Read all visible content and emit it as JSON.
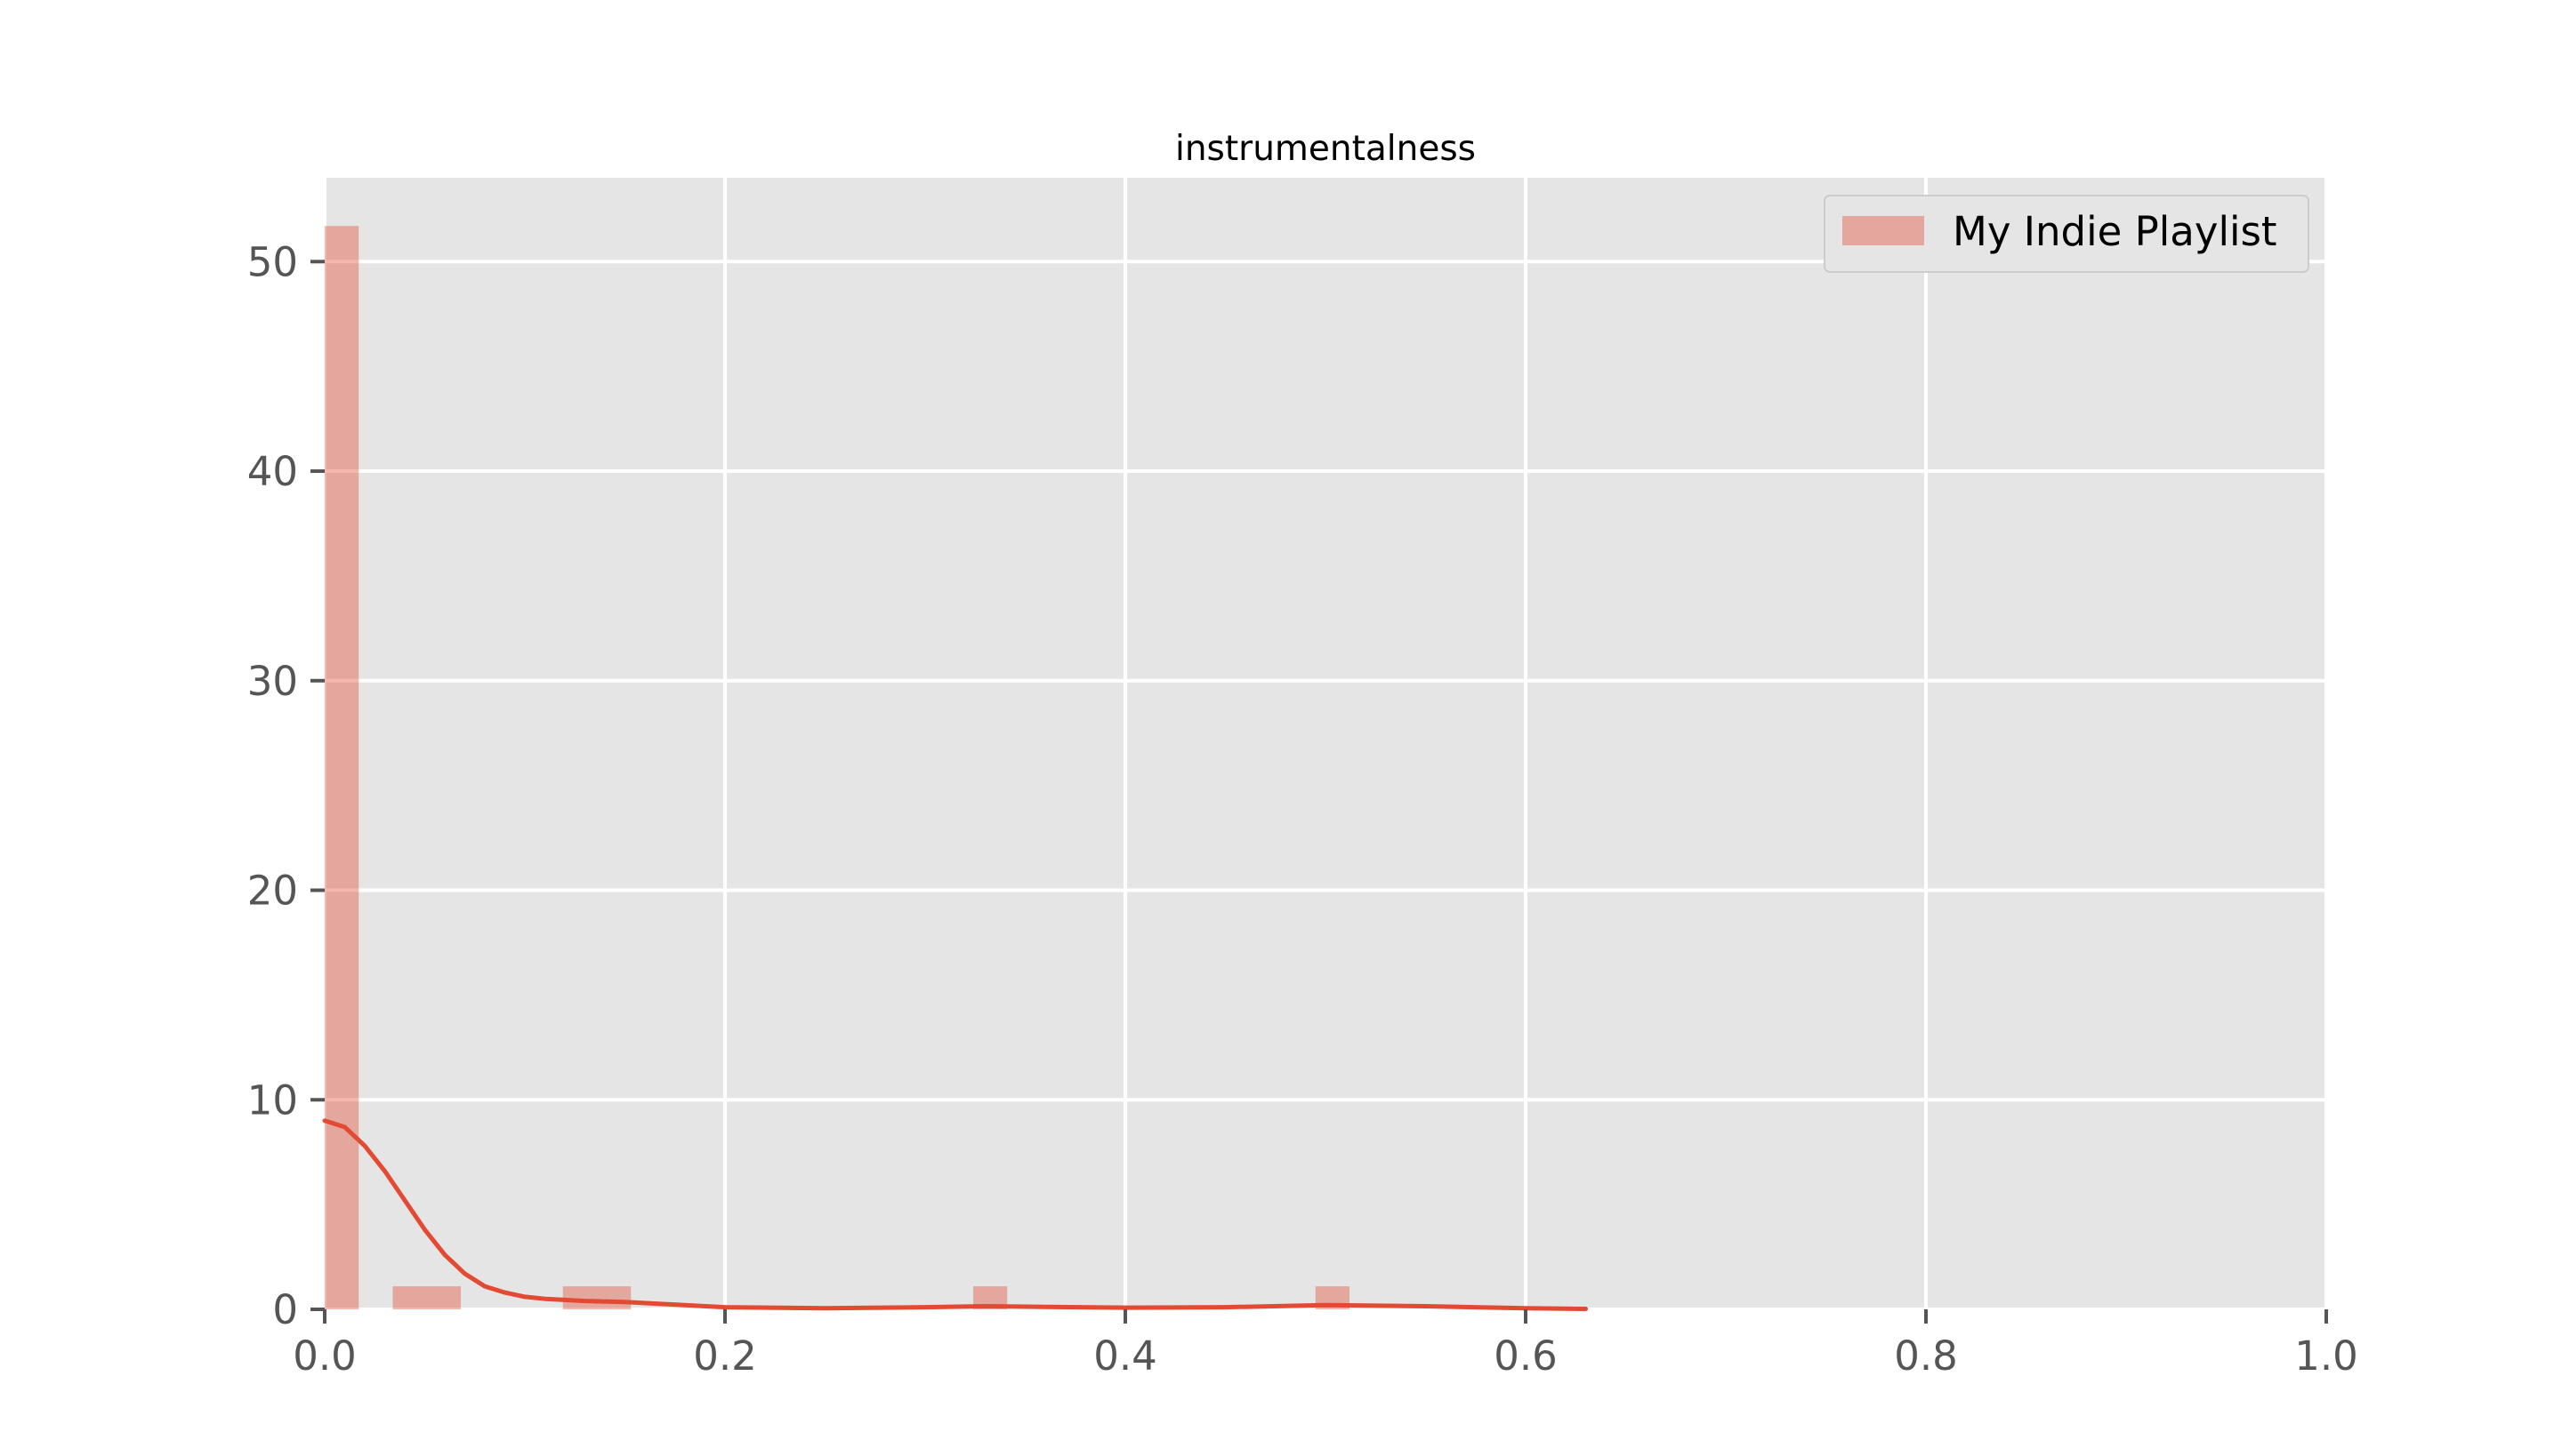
{
  "chart_data": {
    "type": "bar",
    "title": "instrumentalness",
    "xlabel": "",
    "ylabel": "",
    "xlim": [
      0.0,
      1.0
    ],
    "ylim": [
      0,
      54
    ],
    "xticks": [
      0.0,
      0.2,
      0.4,
      0.6,
      0.8,
      1.0
    ],
    "xtick_labels": [
      "0.0",
      "0.2",
      "0.4",
      "0.6",
      "0.8",
      "1.0"
    ],
    "yticks": [
      0,
      10,
      20,
      30,
      40,
      50
    ],
    "ytick_labels": [
      "0",
      "10",
      "20",
      "30",
      "40",
      "50"
    ],
    "grid": true,
    "legend_position": "top-right",
    "series": [
      {
        "name": "My Indie Playlist",
        "kind": "histogram",
        "color": "#E24A33",
        "bins": [
          {
            "x0": 0.0,
            "x1": 0.017,
            "value": 51.7
          },
          {
            "x0": 0.034,
            "x1": 0.068,
            "value": 1.1
          },
          {
            "x0": 0.119,
            "x1": 0.153,
            "value": 1.1
          },
          {
            "x0": 0.324,
            "x1": 0.341,
            "value": 1.1
          },
          {
            "x0": 0.495,
            "x1": 0.512,
            "value": 1.1
          }
        ]
      },
      {
        "name": "kde",
        "kind": "line",
        "color": "#E24A33",
        "x": [
          0.0,
          0.01,
          0.02,
          0.03,
          0.04,
          0.05,
          0.06,
          0.07,
          0.08,
          0.09,
          0.1,
          0.11,
          0.12,
          0.13,
          0.15,
          0.17,
          0.2,
          0.25,
          0.3,
          0.33,
          0.36,
          0.4,
          0.45,
          0.5,
          0.55,
          0.6,
          0.63
        ],
        "y": [
          9.0,
          8.7,
          7.8,
          6.6,
          5.2,
          3.8,
          2.6,
          1.7,
          1.1,
          0.8,
          0.6,
          0.5,
          0.45,
          0.4,
          0.35,
          0.25,
          0.1,
          0.05,
          0.1,
          0.15,
          0.12,
          0.08,
          0.1,
          0.2,
          0.15,
          0.05,
          0.02
        ]
      }
    ]
  }
}
